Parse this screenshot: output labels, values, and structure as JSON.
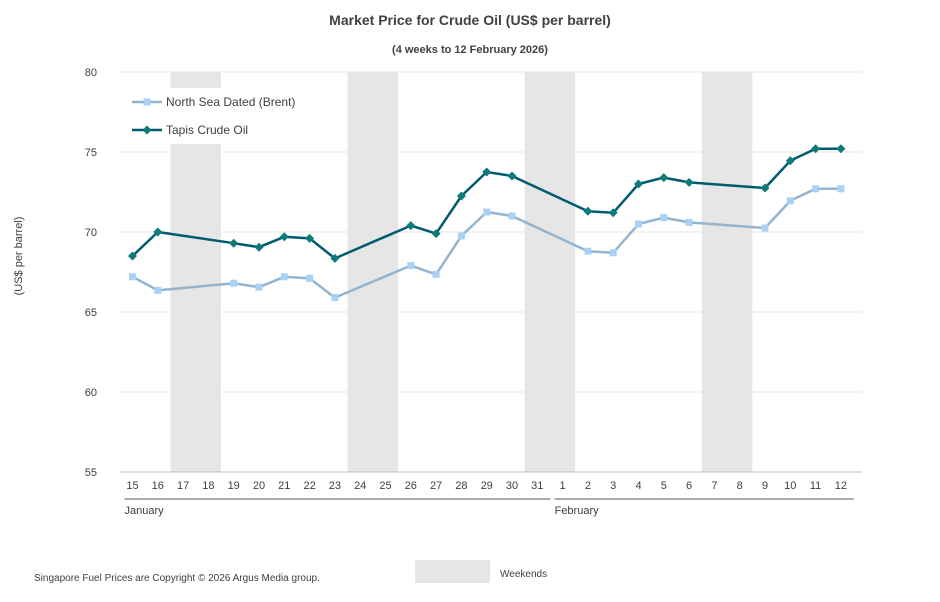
{
  "chart_data": {
    "type": "line",
    "title": "Market Price for Crude Oil (US$ per barrel)",
    "subtitle": "(4 weeks to 12 February 2026)",
    "ylabel": "(US$ per barrel)",
    "ylim": [
      55,
      80
    ],
    "yticks": [
      55,
      60,
      65,
      70,
      75,
      80
    ],
    "categories": [
      "15",
      "16",
      "17",
      "18",
      "19",
      "20",
      "21",
      "22",
      "23",
      "24",
      "25",
      "26",
      "27",
      "28",
      "29",
      "30",
      "31",
      "1",
      "2",
      "3",
      "4",
      "5",
      "6",
      "7",
      "8",
      "9",
      "10",
      "11",
      "12"
    ],
    "months": [
      {
        "label": "January",
        "start_index": 0,
        "end_index": 16
      },
      {
        "label": "February",
        "start_index": 17,
        "end_index": 28
      }
    ],
    "weekends": [
      [
        2,
        3
      ],
      [
        9,
        10
      ],
      [
        16,
        17
      ],
      [
        23,
        24
      ]
    ],
    "weekend_label": "Weekends",
    "weekend_color": "#e6e6e6",
    "legend_position": "top-left",
    "series": [
      {
        "name": "North Sea Dated (Brent)",
        "line_color": "#92b4cf",
        "marker_color": "#a9d1f5",
        "marker": "square",
        "values": [
          67.2,
          66.35,
          null,
          null,
          66.8,
          66.55,
          67.2,
          67.1,
          65.9,
          null,
          null,
          67.9,
          67.35,
          69.75,
          71.25,
          71.0,
          null,
          null,
          68.8,
          68.7,
          70.5,
          70.9,
          70.6,
          null,
          null,
          70.25,
          71.95,
          72.7,
          72.7
        ]
      },
      {
        "name": "Tapis Crude Oil",
        "line_color": "#005a70",
        "marker_color": "#0f7a7a",
        "marker": "diamond",
        "values": [
          68.5,
          70.0,
          null,
          null,
          69.3,
          69.05,
          69.7,
          69.6,
          68.35,
          null,
          null,
          70.4,
          69.9,
          72.25,
          73.75,
          73.5,
          null,
          null,
          71.3,
          71.2,
          73.0,
          73.4,
          73.1,
          null,
          null,
          72.75,
          74.45,
          75.2,
          75.2
        ]
      }
    ]
  },
  "footer": {
    "copyright": "Singapore Fuel Prices are Copyright © 2026 Argus Media group."
  }
}
